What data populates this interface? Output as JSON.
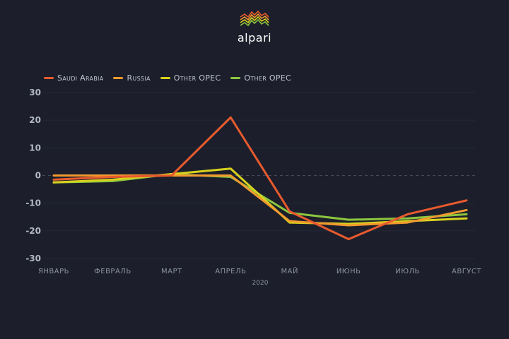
{
  "brand": {
    "name": "alpari",
    "colors": [
      "#e85a2e",
      "#f29a2e",
      "#d8d21e",
      "#8cc63f"
    ]
  },
  "background": "#1c1f2b",
  "chart_data": {
    "type": "line",
    "title": "",
    "xlabel": "2020",
    "ylabel": "",
    "categories": [
      "ЯНВАРЬ",
      "ФЕВРАЛЬ",
      "МАРТ",
      "АПРЕЛЬ",
      "МАЙ",
      "ИЮНЬ",
      "ИЮЛЬ",
      "АВГУСТ"
    ],
    "ylim": [
      -30,
      30
    ],
    "yticks": [
      30,
      20,
      10,
      0,
      -10,
      -20,
      -30
    ],
    "grid": true,
    "zero_line": "dashed",
    "legend_position": "top-left",
    "series": [
      {
        "name": "Saudi Arabia",
        "color": "#e85a2e",
        "values": [
          -1.5,
          -0.5,
          0,
          21,
          -13,
          -23,
          -14,
          -9
        ]
      },
      {
        "name": "Russia",
        "color": "#f29a2e",
        "values": [
          0,
          0,
          0,
          0,
          -16.5,
          -18,
          -17,
          -12.5
        ]
      },
      {
        "name": "Other OPEC",
        "color": "#d8d21e",
        "values": [
          -2.5,
          -1.5,
          0.5,
          2.5,
          -17,
          -17.5,
          -16.5,
          -15.5
        ]
      },
      {
        "name": "Other OPEC",
        "color": "#8cc63f",
        "values": [
          -2.5,
          -2,
          0.5,
          -0.5,
          -13.5,
          -16,
          -15.5,
          -14
        ]
      }
    ]
  }
}
